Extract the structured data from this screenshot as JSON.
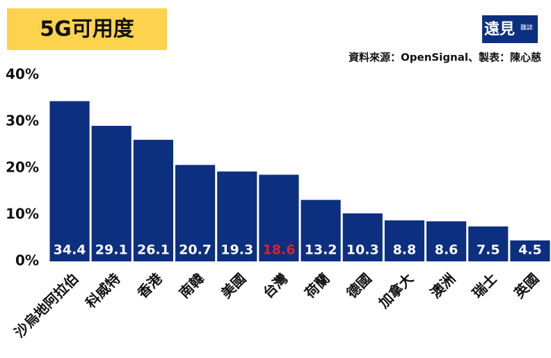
{
  "chart_data": {
    "type": "bar",
    "title": "5G可用度",
    "logo": "遠見",
    "logo_sub": "雜誌",
    "source": "資料來源：OpenSignal、製表：陳心慈",
    "categories": [
      "沙烏地阿拉伯",
      "科威特",
      "香港",
      "南韓",
      "美國",
      "台灣",
      "荷蘭",
      "德國",
      "加拿大",
      "澳洲",
      "瑞士",
      "英國"
    ],
    "values": [
      34.4,
      29.1,
      26.1,
      20.7,
      19.3,
      18.6,
      13.2,
      10.3,
      8.8,
      8.6,
      7.5,
      4.5
    ],
    "color": "#0c2f80",
    "value_label_colors": [
      "#ffffff",
      "#ffffff",
      "#ffffff",
      "#ffffff",
      "#ffffff",
      "#e0202a",
      "#ffffff",
      "#ffffff",
      "#ffffff",
      "#ffffff",
      "#ffffff",
      "#ffffff"
    ],
    "ylim": [
      0,
      40
    ],
    "yticks": [
      {
        "value": 0,
        "label": "0%"
      },
      {
        "value": 10,
        "label": "10%"
      },
      {
        "value": 20,
        "label": "20%"
      },
      {
        "value": 30,
        "label": "30%"
      },
      {
        "value": 40,
        "label": "40%"
      }
    ],
    "grid": false
  }
}
